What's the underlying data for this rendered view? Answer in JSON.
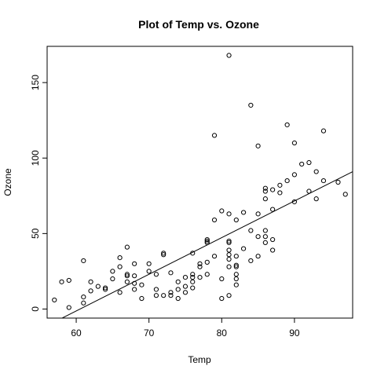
{
  "chart_data": {
    "type": "scatter",
    "title": "Plot of Temp vs. Ozone",
    "xlabel": "Temp",
    "ylabel": "Ozone",
    "xlim": [
      56,
      98
    ],
    "ylim": [
      -6,
      174
    ],
    "xticks": [
      "60",
      "70",
      "80",
      "90"
    ],
    "yticks": [
      "0",
      "50",
      "100",
      "150"
    ],
    "grid": false,
    "legend": "none",
    "colors": {
      "points": "#000000",
      "line": "#000000",
      "background": "#ffffff"
    },
    "fit_line": {
      "intercept": -146.9955,
      "slope": 2.4287
    },
    "points": [
      [
        57,
        6
      ],
      [
        58,
        18
      ],
      [
        59,
        19
      ],
      [
        59,
        1
      ],
      [
        61,
        32
      ],
      [
        61,
        8
      ],
      [
        61,
        4
      ],
      [
        62,
        18
      ],
      [
        62,
        12
      ],
      [
        63,
        15
      ],
      [
        64,
        14
      ],
      [
        64,
        13
      ],
      [
        65,
        20
      ],
      [
        65,
        25
      ],
      [
        66,
        28
      ],
      [
        66,
        34
      ],
      [
        66,
        11
      ],
      [
        67,
        41
      ],
      [
        67,
        18
      ],
      [
        67,
        23
      ],
      [
        67,
        22
      ],
      [
        68,
        30
      ],
      [
        68,
        22
      ],
      [
        68,
        13
      ],
      [
        68,
        17
      ],
      [
        69,
        16
      ],
      [
        69,
        7
      ],
      [
        70,
        30
      ],
      [
        70,
        25
      ],
      [
        71,
        23
      ],
      [
        71,
        13
      ],
      [
        71,
        9
      ],
      [
        72,
        37
      ],
      [
        72,
        36
      ],
      [
        72,
        9
      ],
      [
        73,
        24
      ],
      [
        73,
        11
      ],
      [
        73,
        9
      ],
      [
        74,
        18
      ],
      [
        74,
        13
      ],
      [
        74,
        7
      ],
      [
        75,
        21
      ],
      [
        75,
        15
      ],
      [
        75,
        11
      ],
      [
        76,
        37
      ],
      [
        76,
        23
      ],
      [
        76,
        14
      ],
      [
        76,
        18
      ],
      [
        76,
        21
      ],
      [
        77,
        21
      ],
      [
        77,
        28
      ],
      [
        77,
        30
      ],
      [
        78,
        46
      ],
      [
        78,
        45
      ],
      [
        78,
        44
      ],
      [
        78,
        23
      ],
      [
        78,
        31
      ],
      [
        79,
        59
      ],
      [
        79,
        115
      ],
      [
        79,
        35
      ],
      [
        80,
        65
      ],
      [
        80,
        20
      ],
      [
        80,
        7
      ],
      [
        81,
        168
      ],
      [
        81,
        63
      ],
      [
        81,
        45
      ],
      [
        81,
        44
      ],
      [
        81,
        39
      ],
      [
        81,
        36
      ],
      [
        81,
        33
      ],
      [
        81,
        28
      ],
      [
        81,
        9
      ],
      [
        82,
        59
      ],
      [
        82,
        35
      ],
      [
        82,
        29
      ],
      [
        82,
        28
      ],
      [
        82,
        23
      ],
      [
        82,
        20
      ],
      [
        82,
        16
      ],
      [
        83,
        64
      ],
      [
        83,
        40
      ],
      [
        84,
        135
      ],
      [
        84,
        32
      ],
      [
        84,
        52
      ],
      [
        85,
        108
      ],
      [
        85,
        63
      ],
      [
        85,
        48
      ],
      [
        85,
        35
      ],
      [
        86,
        80
      ],
      [
        86,
        78
      ],
      [
        86,
        73
      ],
      [
        86,
        52
      ],
      [
        86,
        48
      ],
      [
        86,
        44
      ],
      [
        87,
        66
      ],
      [
        87,
        46
      ],
      [
        87,
        39
      ],
      [
        87,
        79
      ],
      [
        88,
        82
      ],
      [
        88,
        77
      ],
      [
        89,
        122
      ],
      [
        89,
        85
      ],
      [
        90,
        110
      ],
      [
        90,
        89
      ],
      [
        90,
        71
      ],
      [
        91,
        96
      ],
      [
        92,
        97
      ],
      [
        92,
        78
      ],
      [
        93,
        91
      ],
      [
        93,
        73
      ],
      [
        94,
        118
      ],
      [
        94,
        85
      ],
      [
        96,
        84
      ],
      [
        97,
        76
      ]
    ]
  }
}
